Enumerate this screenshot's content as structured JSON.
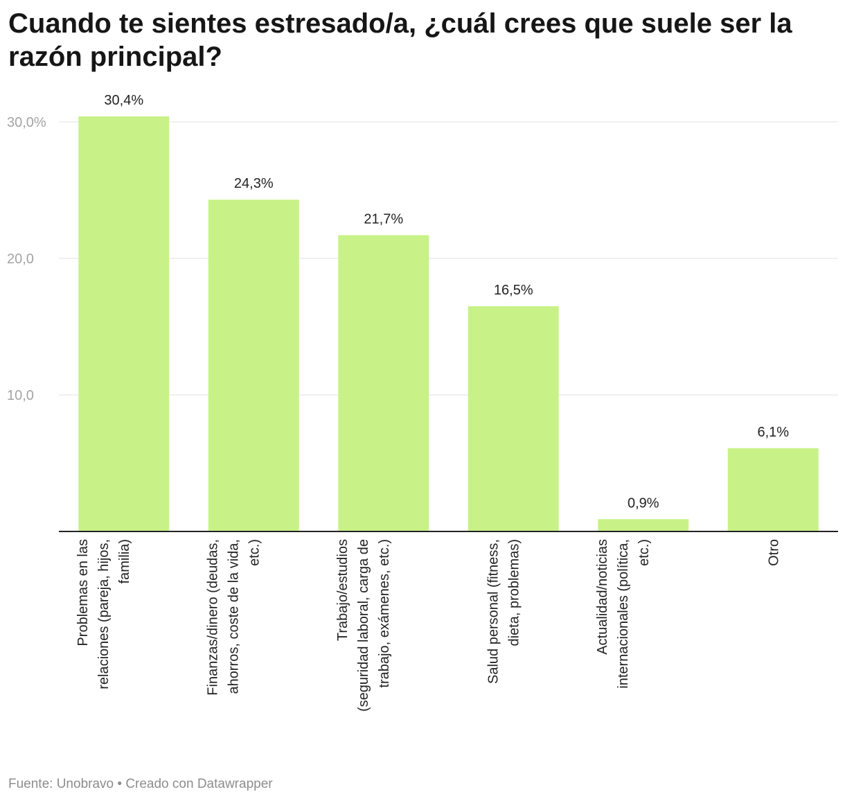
{
  "title": "Cuando te sientes estresado/a, ¿cuál crees que suele ser la razón principal?",
  "footer": {
    "source": "Fuente: Unobravo",
    "separator": "•",
    "credit": "Creado con Datawrapper"
  },
  "colors": {
    "bar": "#c8f288",
    "grid": "#e2e2e2",
    "axis": "#222222",
    "tick_text": "#a3a3a3"
  },
  "chart_data": {
    "type": "bar",
    "title": "Cuando te sientes estresado/a, ¿cuál crees que suele ser la razón principal?",
    "xlabel": "",
    "ylabel": "",
    "ylim": [
      0,
      30.4
    ],
    "grid": true,
    "yticks": [
      {
        "value": 10,
        "label": "10,0"
      },
      {
        "value": 20,
        "label": "20,0"
      },
      {
        "value": 30,
        "label": "30,0%"
      }
    ],
    "categories": [
      [
        "Problemas en las",
        "relaciones (pareja, hijos,",
        "familia)"
      ],
      [
        "Finanzas/dinero (deudas,",
        "ahorros, coste de la vida,",
        "etc.)"
      ],
      [
        "Trabajo/estudios",
        "(seguridad laboral, carga de",
        "trabajo, exámenes, etc.)"
      ],
      [
        "Salud personal (fitness,",
        "dieta, problemas)"
      ],
      [
        "Actualidad/noticias",
        "internacionales (política,",
        "etc.)"
      ],
      [
        "Otro"
      ]
    ],
    "values": [
      30.4,
      24.3,
      21.7,
      16.5,
      0.9,
      6.1
    ],
    "value_labels": [
      "30,4%",
      "24,3%",
      "21,7%",
      "16,5%",
      "0,9%",
      "6,1%"
    ]
  }
}
